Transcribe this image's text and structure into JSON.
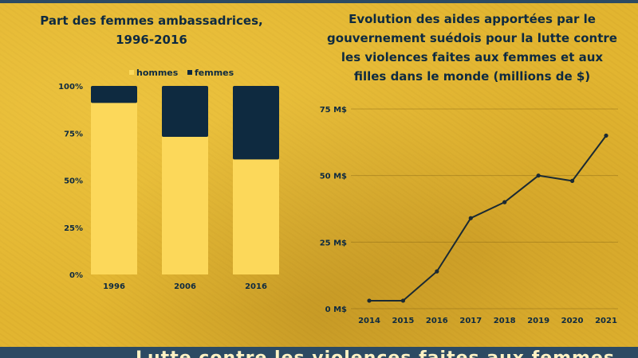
{
  "chart_data": [
    {
      "type": "bar",
      "stacked": true,
      "title": "Part des femmes ambassadrices, 1996-2016",
      "title_lines": [
        "Part des femmes ambassadrices,",
        "1996-2016"
      ],
      "categories": [
        "1996",
        "2006",
        "2016"
      ],
      "series": [
        {
          "name": "hommes",
          "values": [
            91,
            73,
            61
          ]
        },
        {
          "name": "femmes",
          "values": [
            9,
            27,
            39
          ]
        }
      ],
      "y_ticks": [
        "0%",
        "25%",
        "50%",
        "75%",
        "100%"
      ],
      "ylim": [
        0,
        100
      ],
      "legend_position": "top",
      "grid": false,
      "colors": {
        "hommes": "#fcd85a",
        "femmes": "#0e2a40"
      }
    },
    {
      "type": "line",
      "title": "Evolution des aides apportées par le gouvernement suédois pour la lutte contre les violences faites aux femmes et aux filles dans le monde (millions de $)",
      "title_lines": [
        "Evolution des aides apportées par le",
        "gouvernement suédois pour la lutte contre",
        "les violences faites aux femmes et aux",
        "filles dans le monde (millions de $)"
      ],
      "x": [
        "2014",
        "2015",
        "2016",
        "2017",
        "2018",
        "2019",
        "2020",
        "2021"
      ],
      "y": [
        3,
        3,
        14,
        34,
        40,
        50,
        48,
        65
      ],
      "y_ticks": [
        "0 M$",
        "25 M$",
        "50 M$",
        "75 M$"
      ],
      "ylim": [
        0,
        75
      ],
      "grid": true,
      "colors": {
        "line": "#1b2a33"
      }
    }
  ],
  "footer": {
    "text": "Lutte contre les violences faites aux femmes"
  }
}
